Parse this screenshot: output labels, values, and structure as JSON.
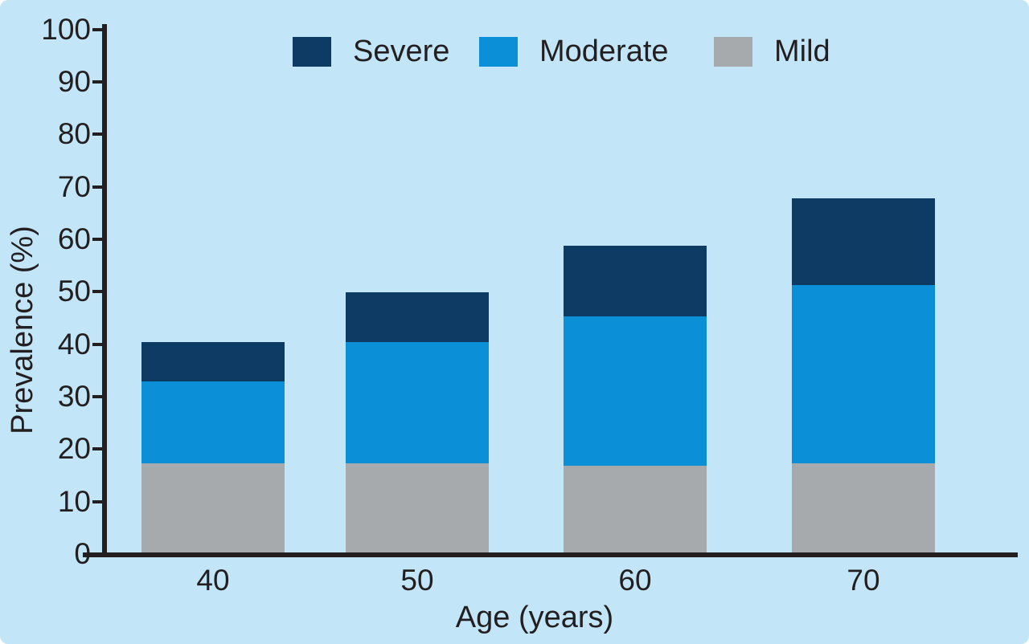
{
  "figure": {
    "background_color": "#c3e5f8",
    "ink_color": "#231f20"
  },
  "chart_data": {
    "type": "bar",
    "stacked": true,
    "title": "",
    "xlabel": "Age (years)",
    "ylabel": "Prevalence (%)",
    "categories": [
      "40",
      "50",
      "60",
      "70"
    ],
    "series": [
      {
        "name": "Mild",
        "color": "#a7aaad",
        "values": [
          17.5,
          17.5,
          17.0,
          17.5
        ]
      },
      {
        "name": "Moderate",
        "color": "#0b90d7",
        "values": [
          15.5,
          23.0,
          28.5,
          34.0
        ]
      },
      {
        "name": "Severe",
        "color": "#0d3b63",
        "values": [
          7.5,
          9.5,
          13.5,
          16.5
        ]
      }
    ],
    "stack_totals": [
      40.5,
      50,
      59,
      68
    ],
    "ylim": [
      0,
      100
    ],
    "yticks": [
      0,
      10,
      20,
      30,
      40,
      50,
      60,
      70,
      80,
      90,
      100
    ],
    "grid": false,
    "legend": {
      "position": "top",
      "entries": [
        "Severe",
        "Moderate",
        "Mild"
      ]
    }
  }
}
